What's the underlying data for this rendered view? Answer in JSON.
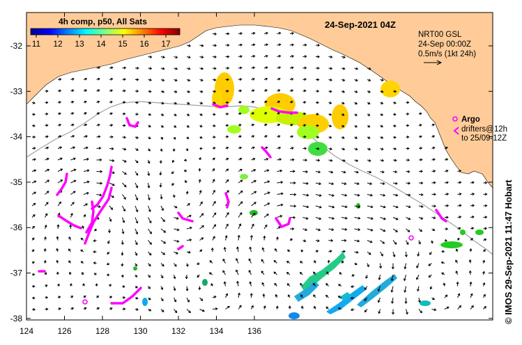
{
  "map": {
    "colorbar_title": "4h comp, p50, All Sats",
    "colorbar_ticks": [
      "11",
      "12",
      "13",
      "14",
      "15",
      "16",
      "17"
    ],
    "date_title": "24-Sep-2021 04Z",
    "currents_legend": {
      "line1": "NRT00 GSL",
      "line2": "24-Sep 00:00Z",
      "line3": "0.5m/s (1kt 24h)"
    },
    "argo_label": "Argo",
    "drifters_label_1": "drifters@12h",
    "drifters_label_2": "to 25/09-12Z",
    "credit": "© IMOS 29-Sep-2021 11:47 Hobart",
    "y_ticks": [
      "-32",
      "-33",
      "-34",
      "-35",
      "-36",
      "-37",
      "-38"
    ],
    "x_ticks": [
      "124",
      "126",
      "128",
      "130",
      "132",
      "134",
      "136"
    ],
    "colors": {
      "land": "#FFCC99",
      "ocean": "#FFFFFF",
      "drifter": "#FF00FF",
      "isobath": "#A0A0A0"
    },
    "colorbar_colors": [
      "#00008F",
      "#0000FF",
      "#0080FF",
      "#00FFFF",
      "#80FF80",
      "#FFFF00",
      "#FF8000",
      "#FF0000",
      "#800000"
    ]
  }
}
